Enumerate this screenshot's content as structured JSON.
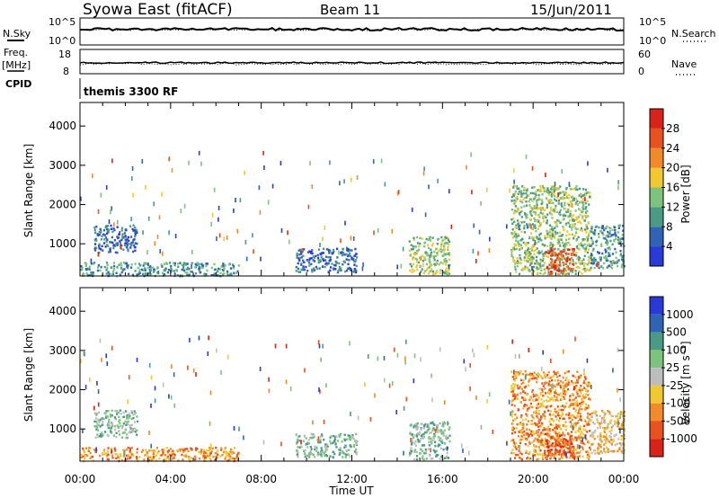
{
  "header": {
    "station": "Syowa East (fitACF)",
    "beam": "Beam 11",
    "date": "15/Jun/2011"
  },
  "nsky_panel": {
    "left_label": "N.Sky",
    "left_ticks": [
      "10^5",
      "10^0"
    ],
    "right_label": "N.Search",
    "right_ticks": [
      "10^5",
      "10^0"
    ]
  },
  "freq_panel": {
    "left_label_line1": "Freq.",
    "left_label_line2": "[MHz]",
    "left_ticks": [
      "18",
      "8"
    ],
    "right_label": "Nave",
    "right_ticks": [
      "60",
      "0"
    ]
  },
  "cpid": {
    "label": "CPID",
    "program": "themis 3300 RF"
  },
  "chart_data": [
    {
      "type": "heatmap",
      "name": "power",
      "ylabel": "Slant Range [km]",
      "xlabel": "Time UT",
      "ylim": [
        180,
        4600
      ],
      "yticks": [
        "1000",
        "2000",
        "3000",
        "4000"
      ],
      "xticks": [
        "00:00",
        "04:00",
        "08:00",
        "12:00",
        "16:00",
        "20:00",
        "00:00"
      ],
      "colorbar": {
        "label": "Power [dB]",
        "ticks": [
          "4",
          "8",
          "12",
          "16",
          "20",
          "24",
          "28"
        ],
        "colors": [
          "#2a3ad6",
          "#2f63b4",
          "#4b9a86",
          "#7ec37d",
          "#f0c832",
          "#f08a2a",
          "#e8521e",
          "#d8221a"
        ]
      },
      "echo_regions": [
        {
          "t0": 0.0,
          "t1": 7.0,
          "r0": 200,
          "r1": 550,
          "level": 2
        },
        {
          "t0": 0.6,
          "t1": 2.5,
          "r0": 800,
          "r1": 1500,
          "level": 1
        },
        {
          "t0": 9.5,
          "t1": 12.2,
          "r0": 300,
          "r1": 900,
          "level": 1
        },
        {
          "t0": 14.5,
          "t1": 16.3,
          "r0": 250,
          "r1": 1200,
          "level": 3
        },
        {
          "t0": 19.0,
          "t1": 22.5,
          "r0": 250,
          "r1": 2500,
          "level": 3
        },
        {
          "t0": 20.5,
          "t1": 21.8,
          "r0": 250,
          "r1": 900,
          "level": 6
        },
        {
          "t0": 22.5,
          "t1": 24.0,
          "r0": 400,
          "r1": 1500,
          "level": 2
        }
      ]
    },
    {
      "type": "heatmap",
      "name": "velocity",
      "ylabel": "Slant Range [km]",
      "xlabel": "Time UT",
      "ylim": [
        180,
        4600
      ],
      "yticks": [
        "1000",
        "2000",
        "3000",
        "4000"
      ],
      "xticks": [
        "00:00",
        "04:00",
        "08:00",
        "12:00",
        "16:00",
        "20:00",
        "00:00"
      ],
      "colorbar": {
        "label": "Velocity [m s⁻¹]",
        "ticks": [
          "1000",
          "500",
          "100",
          "25",
          "-25",
          "-100",
          "-500",
          "-1000"
        ],
        "colors": [
          "#2a3ad6",
          "#2f63b4",
          "#4b9a86",
          "#7ec37d",
          "#bdbdbd",
          "#f0c832",
          "#f08a2a",
          "#e8521e",
          "#d8221a"
        ]
      },
      "echo_regions": [
        {
          "t0": 0.0,
          "t1": 7.0,
          "r0": 200,
          "r1": 550,
          "level": 6
        },
        {
          "t0": 0.6,
          "t1": 2.5,
          "r0": 800,
          "r1": 1500,
          "level": 3
        },
        {
          "t0": 9.5,
          "t1": 12.2,
          "r0": 300,
          "r1": 900,
          "level": 3
        },
        {
          "t0": 14.5,
          "t1": 16.3,
          "r0": 250,
          "r1": 1200,
          "level": 3
        },
        {
          "t0": 19.0,
          "t1": 22.5,
          "r0": 250,
          "r1": 2500,
          "level": 6
        },
        {
          "t0": 20.5,
          "t1": 21.8,
          "r0": 250,
          "r1": 900,
          "level": 7
        },
        {
          "t0": 22.5,
          "t1": 24.0,
          "r0": 400,
          "r1": 1500,
          "level": 5
        }
      ]
    }
  ]
}
